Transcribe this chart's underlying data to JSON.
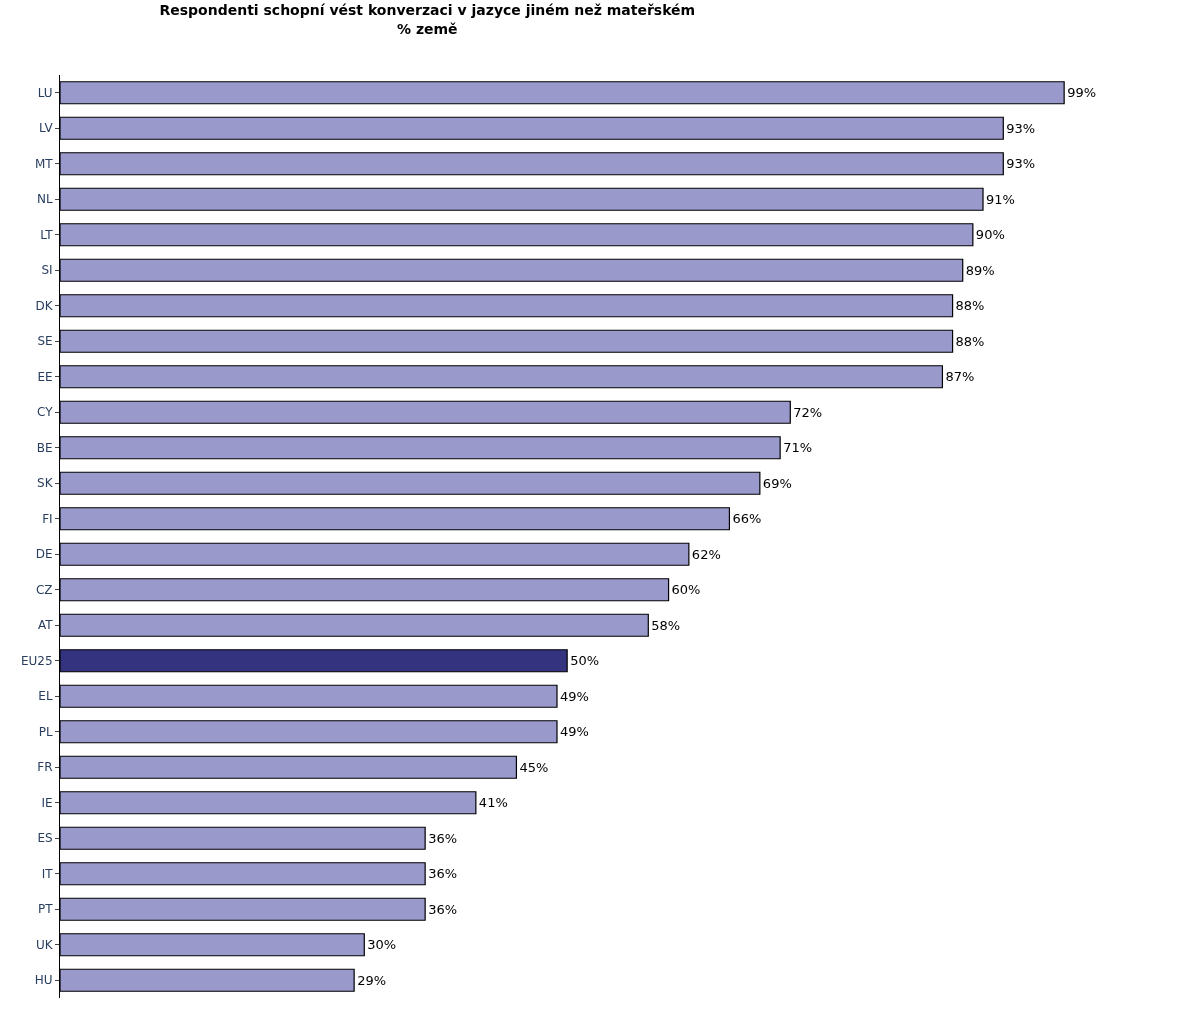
{
  "chart_data": {
    "type": "bar",
    "orientation": "horizontal",
    "title": "Respondenti schopní vést konverzaci v jazyce jiném než mateřském",
    "subtitle": "% země",
    "categories": [
      "LU",
      "LV",
      "MT",
      "NL",
      "LT",
      "SI",
      "DK",
      "SE",
      "EE",
      "CY",
      "BE",
      "SK",
      "FI",
      "DE",
      "CZ",
      "AT",
      "EU25",
      "EL",
      "PL",
      "FR",
      "IE",
      "ES",
      "IT",
      "PT",
      "UK",
      "HU"
    ],
    "values": [
      99,
      93,
      93,
      91,
      90,
      89,
      88,
      88,
      87,
      72,
      71,
      69,
      66,
      62,
      60,
      58,
      50,
      49,
      49,
      45,
      41,
      36,
      36,
      36,
      30,
      29
    ],
    "value_labels": [
      "99%",
      "93%",
      "93%",
      "91%",
      "90%",
      "89%",
      "88%",
      "88%",
      "87%",
      "72%",
      "71%",
      "69%",
      "66%",
      "62%",
      "60%",
      "58%",
      "50%",
      "49%",
      "49%",
      "45%",
      "41%",
      "36%",
      "36%",
      "36%",
      "30%",
      "29%"
    ],
    "colors": [
      "#9999cc",
      "#9999cc",
      "#9999cc",
      "#9999cc",
      "#9999cc",
      "#9999cc",
      "#9999cc",
      "#9999cc",
      "#9999cc",
      "#9999cc",
      "#9999cc",
      "#9999cc",
      "#9999cc",
      "#9999cc",
      "#9999cc",
      "#9999cc",
      "#333380",
      "#9999cc",
      "#9999cc",
      "#9999cc",
      "#9999cc",
      "#9999cc",
      "#9999cc",
      "#9999cc",
      "#9999cc",
      "#9999cc"
    ]
  }
}
